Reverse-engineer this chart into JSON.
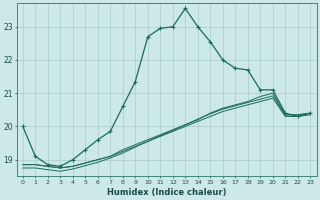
{
  "xlabel": "Humidex (Indice chaleur)",
  "xlim": [
    -0.5,
    23.5
  ],
  "ylim": [
    18.5,
    23.7
  ],
  "yticks": [
    19,
    20,
    21,
    22,
    23
  ],
  "xticks": [
    0,
    1,
    2,
    3,
    4,
    5,
    6,
    7,
    8,
    9,
    10,
    11,
    12,
    13,
    14,
    15,
    16,
    17,
    18,
    19,
    20,
    21,
    22,
    23
  ],
  "bg_color": "#cce8e8",
  "line_color": "#1a6b5a",
  "grid_color": "#aacccc",
  "line1_x": [
    0,
    1,
    2,
    3,
    4,
    5,
    6,
    7,
    8,
    9,
    10,
    11,
    12,
    13,
    14,
    15,
    16,
    17,
    18,
    19,
    20,
    21,
    22,
    23
  ],
  "line1_y": [
    20.0,
    19.1,
    18.85,
    18.8,
    19.0,
    19.3,
    19.6,
    19.85,
    20.6,
    21.35,
    22.7,
    22.95,
    23.0,
    23.55,
    23.0,
    22.55,
    22.0,
    21.75,
    21.7,
    21.1,
    21.1,
    20.4,
    20.3,
    20.4
  ],
  "line2_x": [
    0,
    1,
    2,
    3,
    4,
    5,
    6,
    7,
    8,
    9,
    10,
    11,
    12,
    13,
    14,
    15,
    16,
    17,
    18,
    19,
    20,
    21,
    22,
    23
  ],
  "line2_y": [
    18.85,
    18.85,
    18.8,
    18.75,
    18.8,
    18.9,
    19.0,
    19.1,
    19.25,
    19.4,
    19.55,
    19.7,
    19.85,
    20.0,
    20.15,
    20.3,
    20.45,
    20.55,
    20.65,
    20.75,
    20.85,
    20.3,
    20.3,
    20.35
  ],
  "line3_x": [
    0,
    1,
    2,
    3,
    4,
    5,
    6,
    7,
    8,
    9,
    10,
    11,
    12,
    13,
    14,
    15,
    16,
    17,
    18,
    19,
    20,
    21,
    22,
    23
  ],
  "line3_y": [
    18.85,
    18.85,
    18.8,
    18.75,
    18.8,
    18.9,
    19.0,
    19.1,
    19.3,
    19.45,
    19.6,
    19.75,
    19.9,
    20.05,
    20.2,
    20.4,
    20.55,
    20.65,
    20.75,
    20.9,
    21.0,
    20.35,
    20.35,
    20.4
  ],
  "line4_x": [
    0,
    1,
    2,
    3,
    4,
    5,
    6,
    7,
    8,
    9,
    10,
    11,
    12,
    13,
    14,
    15,
    16,
    17,
    18,
    19,
    20,
    21,
    22,
    23
  ],
  "line4_y": [
    18.75,
    18.75,
    18.7,
    18.65,
    18.72,
    18.82,
    18.92,
    19.05,
    19.2,
    19.38,
    19.55,
    19.72,
    19.88,
    20.05,
    20.22,
    20.38,
    20.52,
    20.62,
    20.72,
    20.82,
    20.92,
    20.35,
    20.35,
    20.4
  ]
}
